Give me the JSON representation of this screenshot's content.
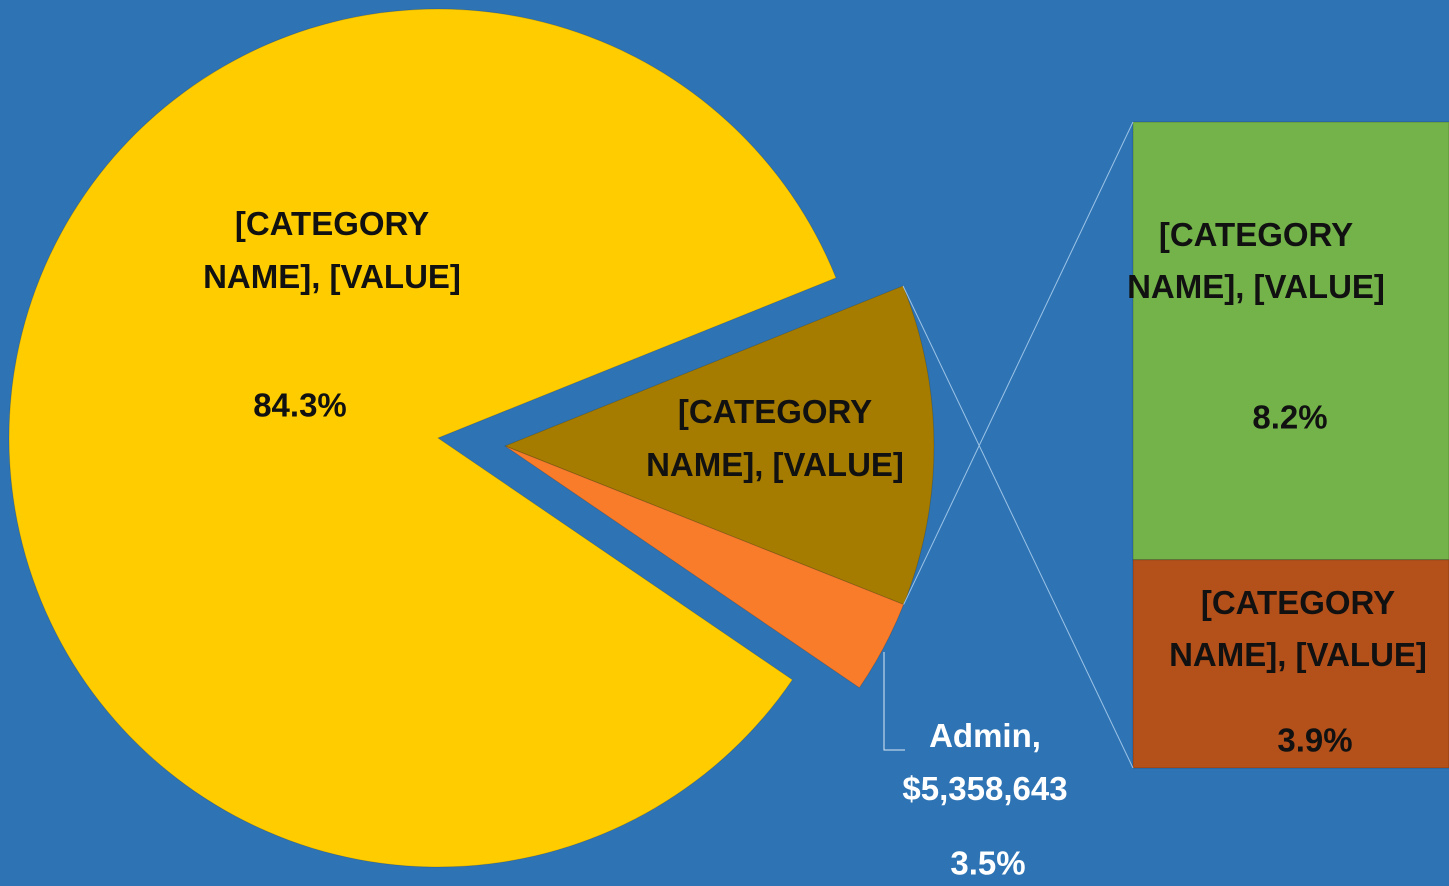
{
  "chart_data": {
    "type": "pie",
    "slices": [
      {
        "label": "[CATEGORY NAME], [VALUE]",
        "value": 84.3,
        "value_label": "84.3%",
        "color": "#ffcc00"
      },
      {
        "label": "[CATEGORY NAME], [VALUE]",
        "value": 12.1,
        "color": "#a67c00"
      },
      {
        "label": "Admin, $5,358,643",
        "value": 3.5,
        "value_label": "3.5%",
        "color": "#f97c2a"
      }
    ],
    "bar": [
      {
        "label": "[CATEGORY NAME], [VALUE]",
        "value": 8.2,
        "value_label": "8.2%",
        "color": "#74b34a"
      },
      {
        "label": "[CATEGORY NAME], [VALUE]",
        "value": 3.9,
        "value_label": "3.9%",
        "color": "#b4501a"
      }
    ]
  }
}
